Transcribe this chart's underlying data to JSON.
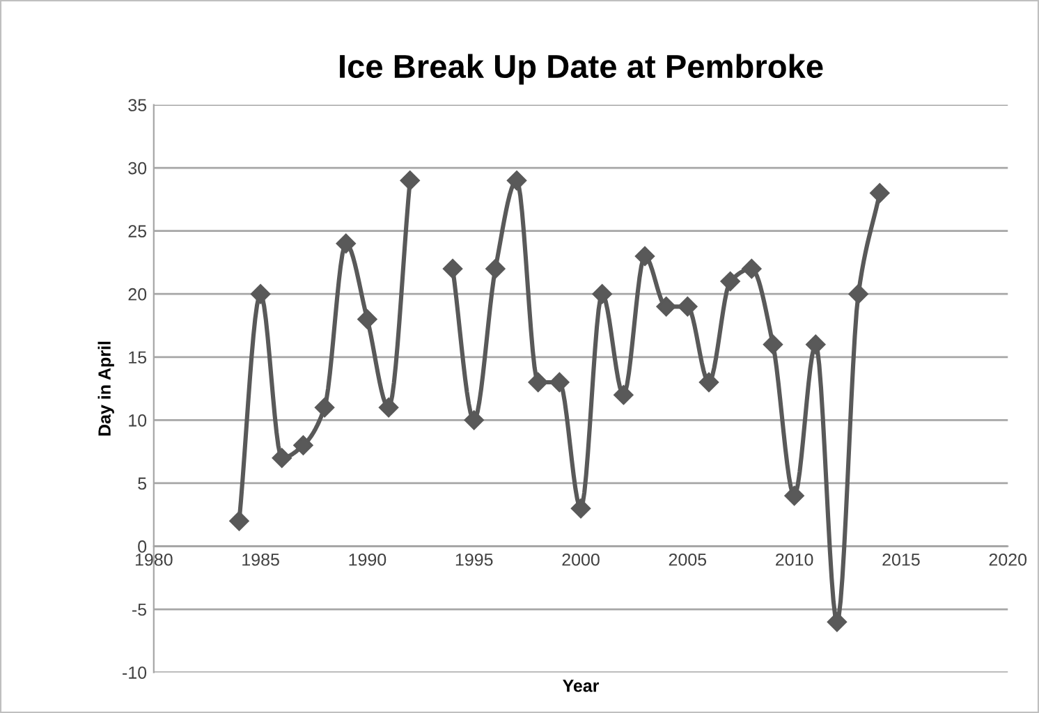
{
  "chart_data": {
    "type": "line",
    "title": "Ice Break Up Date at Pembroke",
    "xlabel": "Year",
    "ylabel": "Day in April",
    "x": [
      1984,
      1985,
      1986,
      1987,
      1988,
      1989,
      1990,
      1991,
      1992,
      1993,
      1994,
      1995,
      1996,
      1997,
      1998,
      1999,
      2000,
      2001,
      2002,
      2003,
      2004,
      2005,
      2006,
      2007,
      2008,
      2009,
      2010,
      2011,
      2012,
      2013,
      2014
    ],
    "series": [
      {
        "color": "#595959",
        "values": [
          2,
          20,
          7,
          8,
          11,
          24,
          18,
          11,
          29,
          null,
          22,
          10,
          22,
          29,
          13,
          13,
          3,
          20,
          12,
          23,
          19,
          19,
          13,
          21,
          22,
          16,
          4,
          16,
          -6,
          20,
          28
        ]
      }
    ],
    "xlim": [
      1980,
      2020
    ],
    "xticks": [
      1980,
      1985,
      1990,
      1995,
      2000,
      2005,
      2010,
      2015,
      2020
    ],
    "ylim": [
      -10,
      35
    ],
    "yticks": [
      -10,
      -5,
      0,
      5,
      10,
      15,
      20,
      25,
      30,
      35
    ],
    "grid": "y",
    "marker": "diamond",
    "line_style": "solid",
    "legend": false
  }
}
